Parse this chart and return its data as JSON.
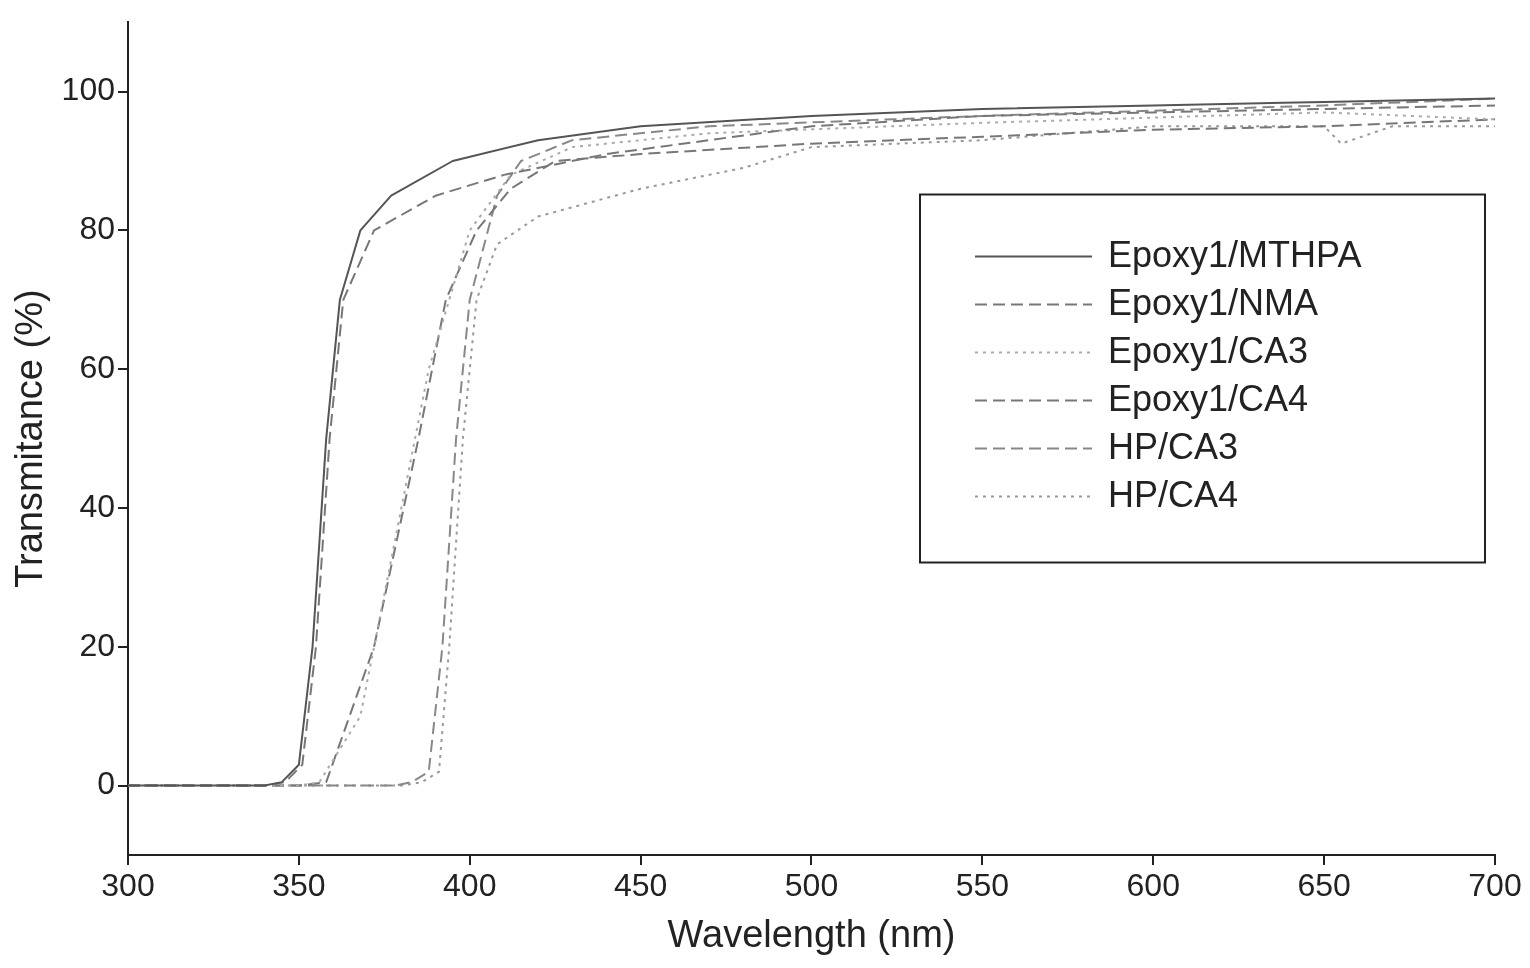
{
  "chart_data": {
    "type": "line",
    "xlabel": "Wavelength (nm)",
    "ylabel": "Transmitance (%)",
    "xlim": [
      300,
      700
    ],
    "xticks": [
      300,
      350,
      400,
      450,
      500,
      550,
      600,
      650,
      700
    ],
    "ylim": [
      -10,
      110
    ],
    "yticks": [
      0,
      20,
      40,
      60,
      80,
      100
    ],
    "grid": false,
    "legend": "right",
    "marker": "none",
    "series": [
      {
        "name": "Epoxy1/MTHPA",
        "color": "#555555",
        "line_style": "solid",
        "x": [
          300,
          340,
          345,
          350,
          354,
          358,
          362,
          368,
          377,
          395,
          420,
          450,
          500,
          550,
          600,
          650,
          700
        ],
        "values": [
          0,
          0,
          0.5,
          3,
          20,
          50,
          70,
          80,
          85,
          90,
          93,
          95,
          96.5,
          97.5,
          98,
          98.5,
          99
        ]
      },
      {
        "name": "Epoxy1/NMA",
        "color": "#777777",
        "line_style": "dashed",
        "x": [
          300,
          340,
          346,
          351,
          355,
          359,
          363,
          372,
          390,
          410,
          440,
          470,
          500,
          550,
          600,
          650,
          700
        ],
        "values": [
          0,
          0,
          0.5,
          3,
          20,
          50,
          70,
          80,
          85,
          88,
          91,
          93,
          95,
          96.5,
          97,
          97.5,
          98
        ]
      },
      {
        "name": "Epoxy1/CA3",
        "color": "#aaaaaa",
        "line_style": "dotted",
        "x": [
          300,
          350,
          356,
          368,
          380,
          388,
          400,
          412,
          430,
          470,
          550,
          650,
          700
        ],
        "values": [
          0,
          0,
          0.5,
          10,
          40,
          60,
          80,
          88,
          92,
          94,
          95.5,
          97,
          96
        ]
      },
      {
        "name": "Epoxy1/CA4",
        "color": "#777777",
        "line_style": "dashed",
        "x": [
          300,
          350,
          358,
          372,
          385,
          393,
          402,
          412,
          425,
          450,
          500,
          550,
          600,
          650,
          700
        ],
        "values": [
          0,
          0,
          0.5,
          20,
          50,
          70,
          80,
          86,
          90,
          91,
          92.5,
          93.5,
          94.5,
          95,
          96
        ]
      },
      {
        "name": "HP/CA3",
        "color": "#888888",
        "line_style": "dashed",
        "x": [
          300,
          378,
          383,
          388,
          392,
          396,
          400,
          408,
          415,
          430,
          470,
          550,
          650,
          700
        ],
        "values": [
          0,
          0,
          0.5,
          2,
          20,
          50,
          70,
          85,
          90,
          93,
          95,
          96.5,
          98,
          99
        ]
      },
      {
        "name": "HP/CA4",
        "color": "#999999",
        "line_style": "dotted",
        "x": [
          300,
          380,
          386,
          391,
          394,
          398,
          402,
          408,
          420,
          450,
          480,
          500,
          550,
          600,
          650,
          655,
          670,
          700
        ],
        "values": [
          0,
          0,
          0.5,
          2,
          20,
          50,
          70,
          78,
          82,
          86,
          89,
          92,
          93,
          95,
          95,
          92.5,
          95,
          95
        ]
      }
    ]
  }
}
